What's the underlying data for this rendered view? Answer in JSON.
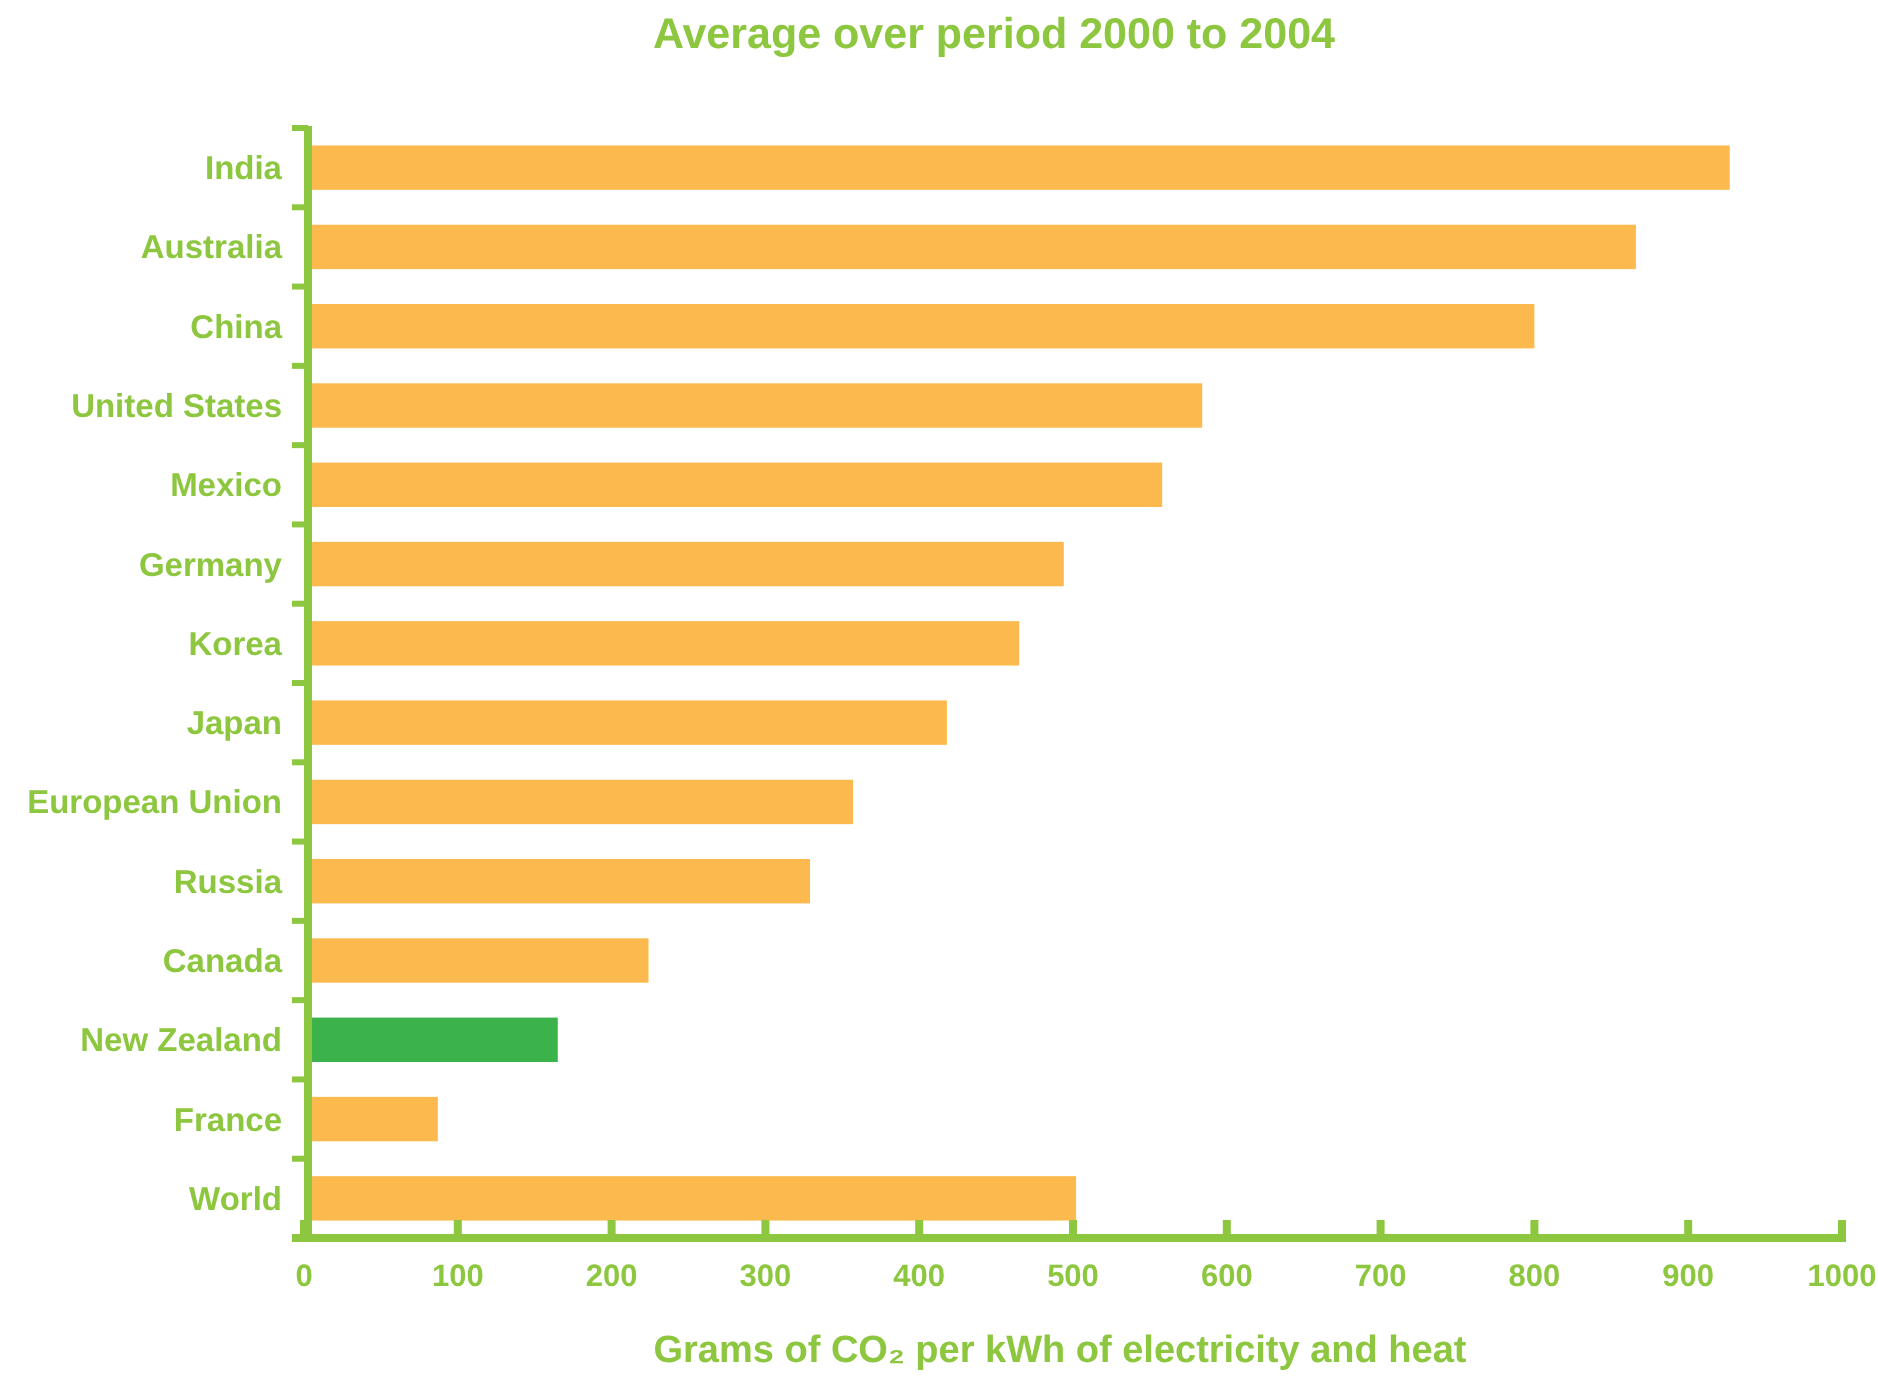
{
  "chart_data": {
    "type": "bar",
    "orientation": "horizontal",
    "title": "Average over period 2000 to 2004",
    "xlabel": "Grams of CO₂ per kWh of electricity and heat",
    "categories": [
      "India",
      "Australia",
      "China",
      "United States",
      "Mexico",
      "Germany",
      "Korea",
      "Japan",
      "European Union",
      "Russia",
      "Canada",
      "New Zealand",
      "France",
      "World"
    ],
    "values": [
      927,
      866,
      800,
      584,
      558,
      494,
      465,
      418,
      357,
      329,
      224,
      165,
      87,
      502
    ],
    "colors": [
      "#fcb94d",
      "#fcb94d",
      "#fcb94d",
      "#fcb94d",
      "#fcb94d",
      "#fcb94d",
      "#fcb94d",
      "#fcb94d",
      "#fcb94d",
      "#fcb94d",
      "#fcb94d",
      "#3bb34a",
      "#fcb94d",
      "#fcb94d"
    ],
    "xlim": [
      0,
      1000
    ],
    "xticks": [
      0,
      100,
      200,
      300,
      400,
      500,
      600,
      700,
      800,
      900,
      1000
    ]
  }
}
